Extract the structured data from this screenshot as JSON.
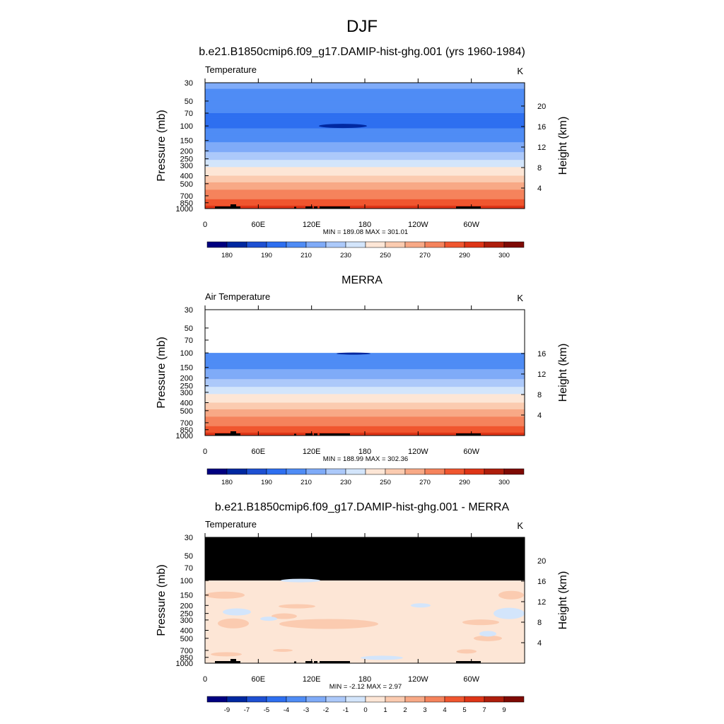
{
  "figure": {
    "title": "DJF"
  },
  "chart_data": [
    {
      "type": "heatmap",
      "panel": "model",
      "title": "b.e21.B1850cmip6.f09_g17.DAMIP-hist-ghg.001 (yrs 1960-1984)",
      "left_label": "Temperature",
      "right_label": "K",
      "ylabel": "Pressure (mb)",
      "ylabel_right": "Height (km)",
      "y_ticks": [
        "30",
        "50",
        "70",
        "100",
        "150",
        "200",
        "250",
        "300",
        "400",
        "500",
        "700",
        "850",
        "1000"
      ],
      "y_ticks_right": [
        "20",
        "16",
        "12",
        "8",
        "4"
      ],
      "x_ticks": [
        "0",
        "60E",
        "120E",
        "180",
        "120W",
        "60W"
      ],
      "stats": "MIN = 189.08  MAX = 301.01",
      "colorbar_labels": [
        "180",
        "190",
        "210",
        "230",
        "250",
        "270",
        "290",
        "300"
      ],
      "band_edges": [
        {
          "p": 30,
          "v": 214
        },
        {
          "p": 50,
          "v": 204
        },
        {
          "p": 70,
          "v": 200
        },
        {
          "p": 100,
          "v": 198
        },
        {
          "p": 150,
          "v": 208
        },
        {
          "p": 200,
          "v": 218
        },
        {
          "p": 250,
          "v": 228
        },
        {
          "p": 300,
          "v": 238
        },
        {
          "p": 400,
          "v": 250
        },
        {
          "p": 500,
          "v": 262
        },
        {
          "p": 700,
          "v": 276
        },
        {
          "p": 850,
          "v": 285
        },
        {
          "p": 1000,
          "v": 294
        }
      ]
    },
    {
      "type": "heatmap",
      "panel": "obs",
      "title": "MERRA",
      "left_label": "Air Temperature",
      "right_label": "K",
      "ylabel": "Pressure (mb)",
      "ylabel_right": "Height (km)",
      "y_ticks": [
        "30",
        "50",
        "70",
        "100",
        "150",
        "200",
        "250",
        "300",
        "400",
        "500",
        "700",
        "850",
        "1000"
      ],
      "y_ticks_right": [
        "16",
        "12",
        "8",
        "4"
      ],
      "x_ticks": [
        "0",
        "60E",
        "120E",
        "180",
        "120W",
        "60W"
      ],
      "stats": "MIN = 188.99  MAX = 302.36",
      "colorbar_labels": [
        "180",
        "190",
        "210",
        "230",
        "250",
        "270",
        "290",
        "300"
      ],
      "band_edges": [
        {
          "p": 100,
          "v": 200
        },
        {
          "p": 150,
          "v": 208
        },
        {
          "p": 200,
          "v": 218
        },
        {
          "p": 250,
          "v": 228
        },
        {
          "p": 300,
          "v": 238
        },
        {
          "p": 400,
          "v": 250
        },
        {
          "p": 500,
          "v": 262
        },
        {
          "p": 700,
          "v": 276
        },
        {
          "p": 850,
          "v": 285
        },
        {
          "p": 1000,
          "v": 294
        }
      ]
    },
    {
      "type": "heatmap",
      "panel": "difference",
      "title": "b.e21.B1850cmip6.f09_g17.DAMIP-hist-ghg.001 - MERRA",
      "left_label": "Temperature",
      "right_label": "K",
      "ylabel": "Pressure (mb)",
      "ylabel_right": "Height (km)",
      "y_ticks": [
        "30",
        "50",
        "70",
        "100",
        "150",
        "200",
        "250",
        "300",
        "400",
        "500",
        "700",
        "850",
        "1000"
      ],
      "y_ticks_right": [
        "20",
        "16",
        "12",
        "8",
        "4"
      ],
      "x_ticks": [
        "0",
        "60E",
        "120E",
        "180",
        "120W",
        "60W"
      ],
      "stats": "MIN =  -2.12  MAX =   2.97",
      "colorbar_labels": [
        "-9",
        "-7",
        "-5",
        "-4",
        "-3",
        "-2",
        "-1",
        "0",
        "1",
        "2",
        "3",
        "4",
        "5",
        "7",
        "9"
      ],
      "background_value": 0.5,
      "missing_above_mb": 100
    }
  ],
  "colors": {
    "abs_palette": [
      "#000080",
      "#0028a0",
      "#1e50d2",
      "#2e6ff0",
      "#4f8cf5",
      "#7fabf8",
      "#acc9fa",
      "#d3e5fb",
      "#fde6d6",
      "#fbcbb0",
      "#f8a986",
      "#f5835c",
      "#f0562f",
      "#de3517",
      "#ae1e0c",
      "#7e0a04"
    ],
    "diff_palette": [
      "#000080",
      "#0028a0",
      "#1e50d2",
      "#2e6ff0",
      "#4f8cf5",
      "#7fabf8",
      "#acc9fa",
      "#d3e5fb",
      "#fde6d6",
      "#fbcbb0",
      "#f8a986",
      "#f5835c",
      "#f0562f",
      "#de3517",
      "#ae1e0c",
      "#7e0a04"
    ],
    "topography": "#000000",
    "missing": "#000000"
  }
}
